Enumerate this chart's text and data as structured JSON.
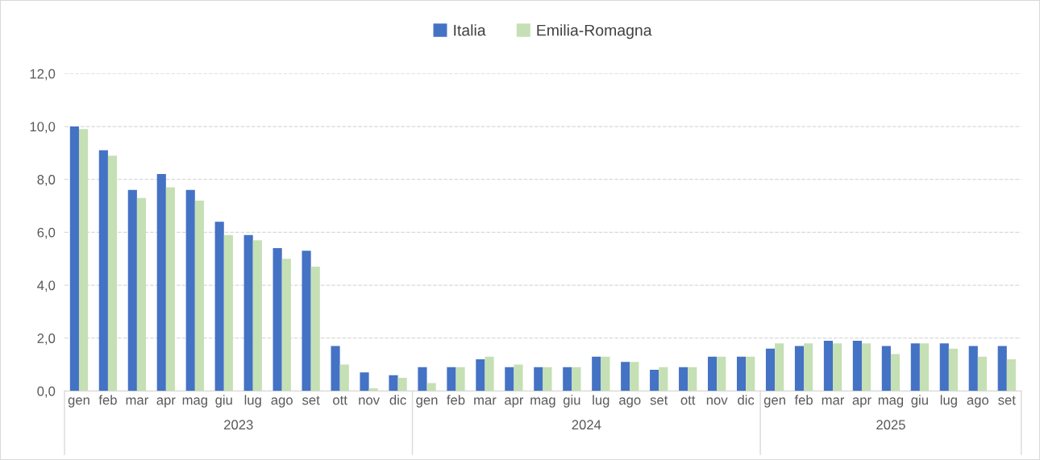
{
  "chart_data": {
    "type": "bar",
    "categories": [
      "gen",
      "feb",
      "mar",
      "apr",
      "mag",
      "giu",
      "lug",
      "ago",
      "set",
      "ott",
      "nov",
      "dic",
      "gen",
      "feb",
      "mar",
      "apr",
      "mag",
      "giu",
      "lug",
      "ago",
      "set",
      "ott",
      "nov",
      "dic",
      "gen",
      "feb",
      "mar",
      "apr",
      "mag",
      "giu",
      "lug",
      "ago",
      "set"
    ],
    "series": [
      {
        "name": "Italia",
        "color": "#4472c4",
        "values": [
          10.0,
          9.1,
          7.6,
          8.2,
          7.6,
          6.4,
          5.9,
          5.4,
          5.3,
          1.7,
          0.7,
          0.6,
          0.9,
          0.9,
          1.2,
          0.9,
          0.9,
          0.9,
          1.3,
          1.1,
          0.8,
          0.9,
          1.3,
          1.3,
          1.6,
          1.7,
          1.9,
          1.9,
          1.7,
          1.8,
          1.8,
          1.7,
          1.7
        ]
      },
      {
        "name": "Emilia-Romagna",
        "color": "#c5e0b4",
        "values": [
          9.9,
          8.9,
          7.3,
          7.7,
          7.2,
          5.9,
          5.7,
          5.0,
          4.7,
          1.0,
          0.1,
          0.5,
          0.3,
          0.9,
          1.3,
          1.0,
          0.9,
          0.9,
          1.3,
          1.1,
          0.9,
          0.9,
          1.3,
          1.3,
          1.8,
          1.8,
          1.8,
          1.8,
          1.4,
          1.8,
          1.6,
          1.3,
          1.2
        ]
      }
    ],
    "annotations": [
      "2023",
      "2024",
      "2025"
    ],
    "ylim": [
      0,
      12
    ],
    "yticks": [
      {
        "value": 0,
        "label": "0,0"
      },
      {
        "value": 2,
        "label": "2,0"
      },
      {
        "value": 4,
        "label": "4,0"
      },
      {
        "value": 6,
        "label": "6,0"
      },
      {
        "value": 8,
        "label": "8,0"
      },
      {
        "value": 10,
        "label": "10,0"
      },
      {
        "value": 12,
        "label": "12,0"
      }
    ],
    "grid": "y",
    "legend": "top"
  }
}
